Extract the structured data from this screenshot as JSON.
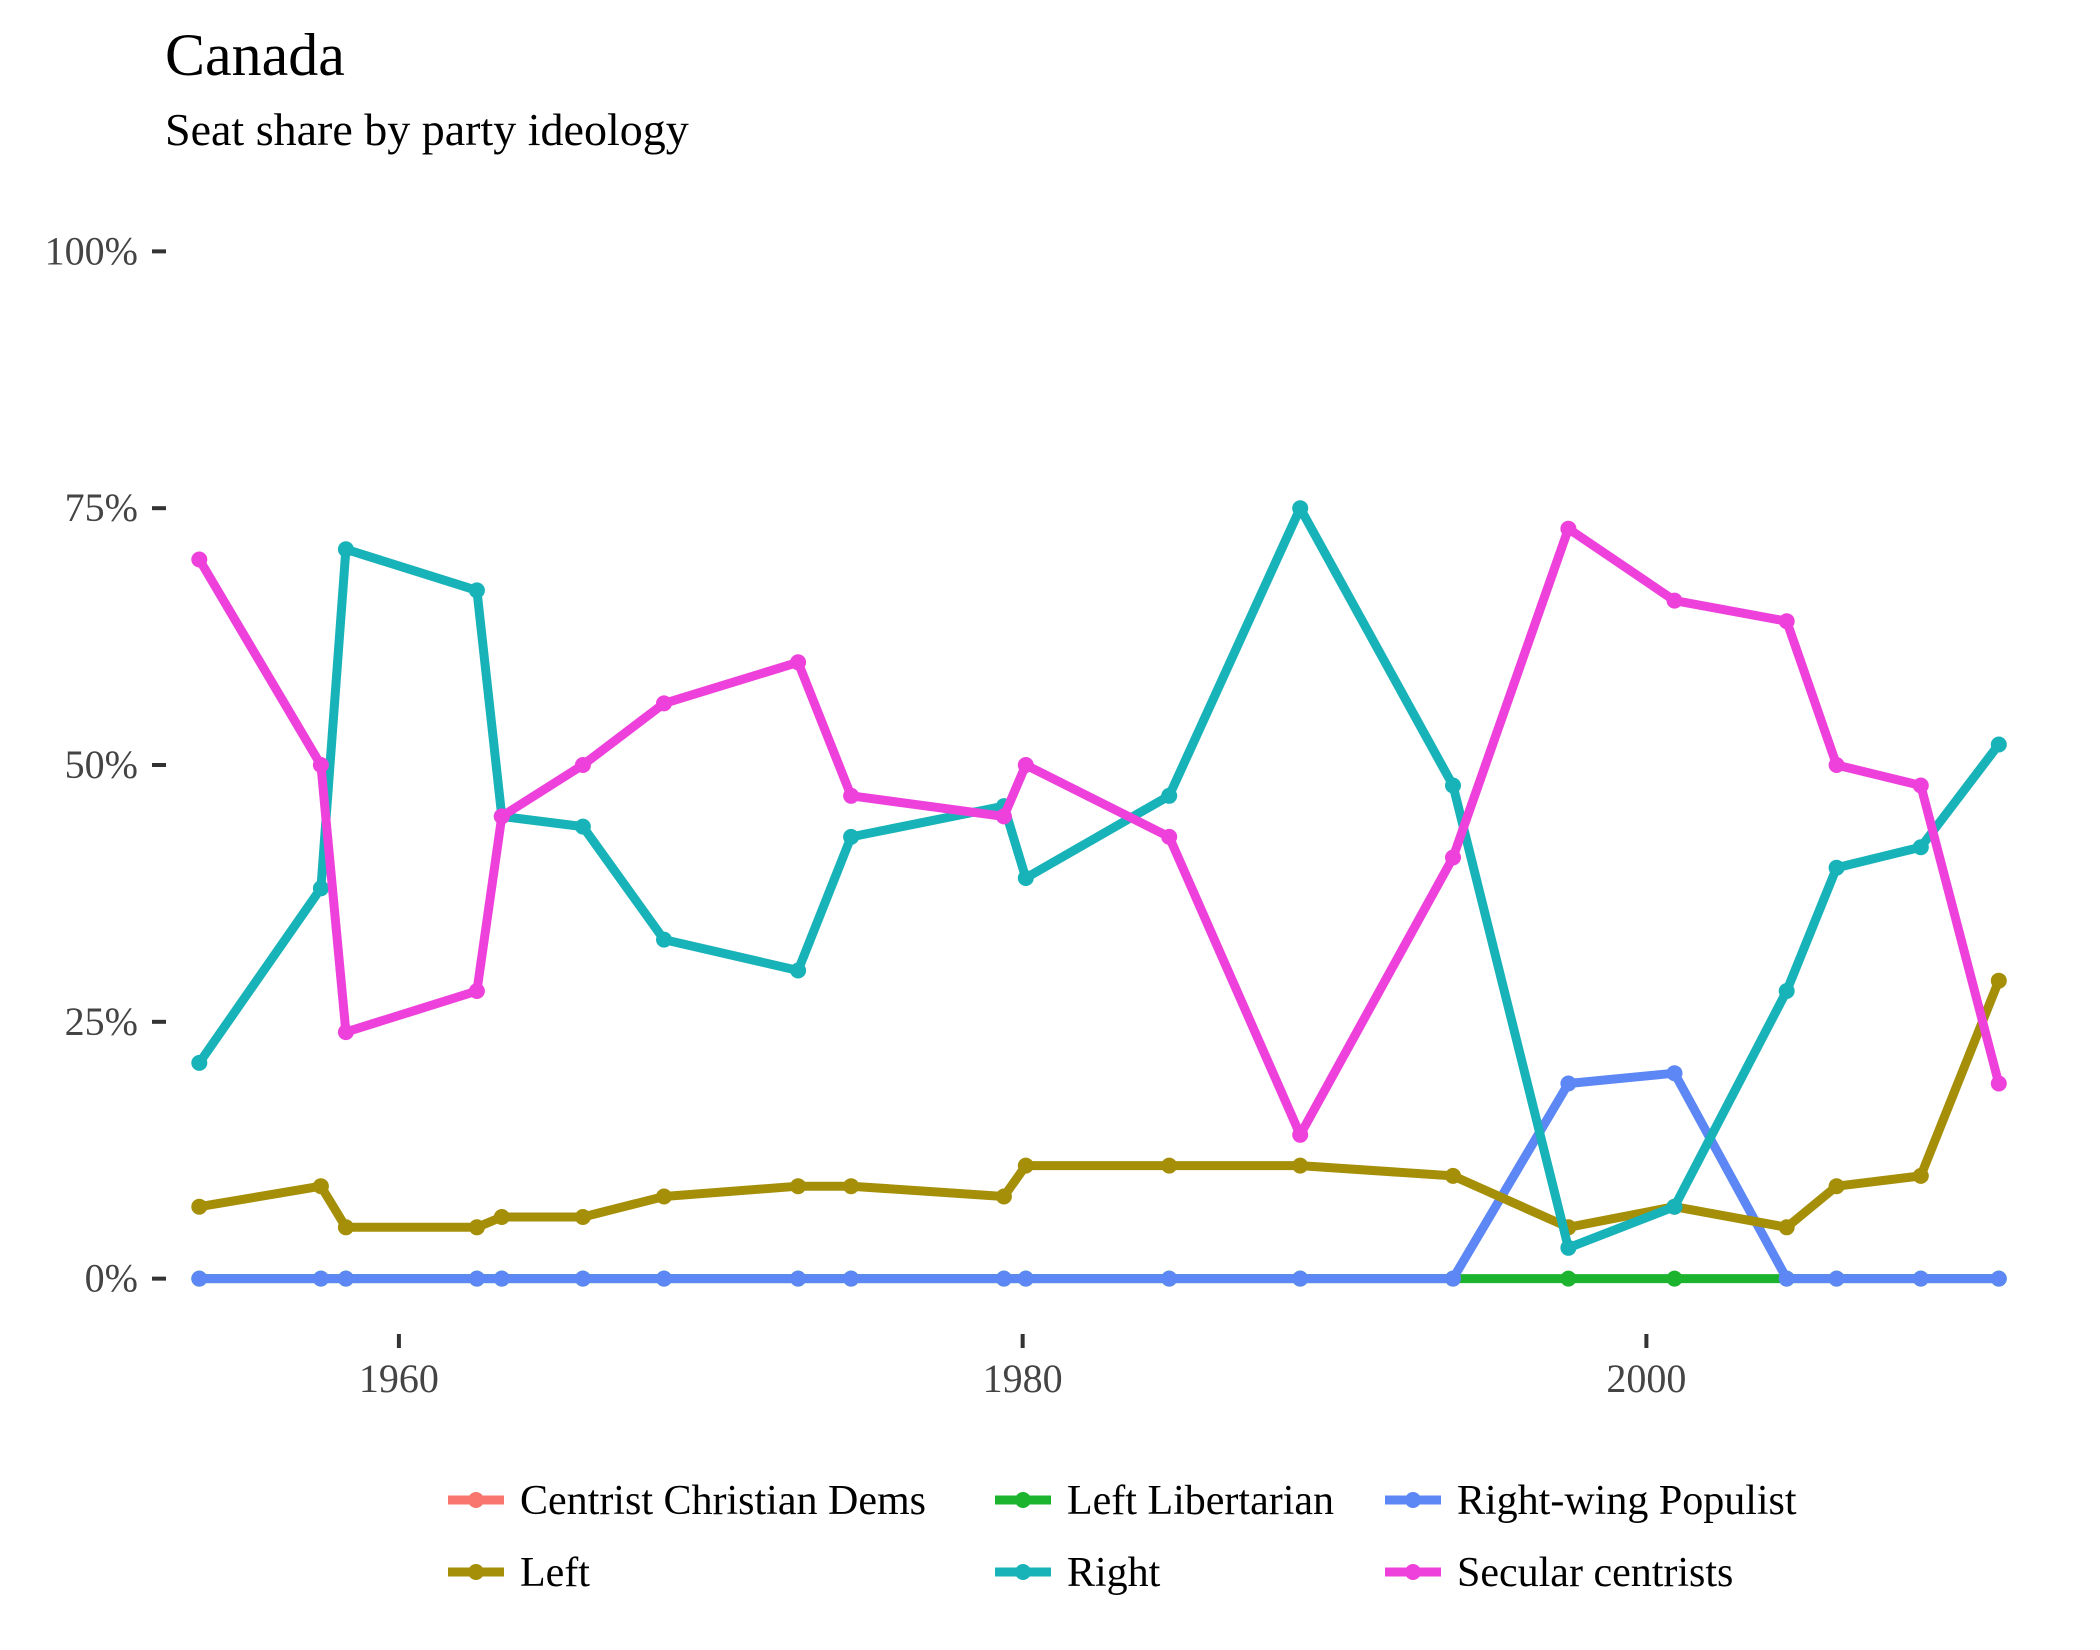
{
  "chart_data": {
    "type": "line",
    "title": "Canada",
    "subtitle": "Seat share by party ideology",
    "xlabel": "",
    "ylabel": "",
    "xlim": [
      1952.5,
      2012.3
    ],
    "ylim": [
      -0.05,
      1.05
    ],
    "x_ticks": [
      {
        "value": 1960,
        "label": "1960"
      },
      {
        "value": 1980,
        "label": "1980"
      },
      {
        "value": 2000,
        "label": "2000"
      }
    ],
    "y_ticks": [
      {
        "value": 0,
        "label": "0%"
      },
      {
        "value": 0.25,
        "label": "25%"
      },
      {
        "value": 0.5,
        "label": "50%"
      },
      {
        "value": 0.75,
        "label": "75%"
      },
      {
        "value": 1.0,
        "label": "100%"
      }
    ],
    "grid": false,
    "legend_position": "bottom",
    "x": [
      1953.6,
      1957.5,
      1958.3,
      1962.5,
      1963.3,
      1965.9,
      1968.5,
      1972.8,
      1974.5,
      1979.4,
      1980.1,
      1984.7,
      1988.9,
      1993.8,
      1997.5,
      2000.9,
      2004.5,
      2006.1,
      2008.8,
      2011.3
    ],
    "series": [
      {
        "name": "Centrist Christian Dems",
        "color": "#F8766D",
        "values": [
          null,
          null,
          null,
          null,
          null,
          null,
          null,
          null,
          null,
          null,
          null,
          null,
          null,
          null,
          null,
          null,
          null,
          null,
          null,
          null
        ]
      },
      {
        "name": "Left Libertarian",
        "color": "#1CB42F",
        "values": [
          0,
          0,
          0,
          0,
          0,
          0,
          0,
          0,
          0,
          0,
          0,
          0,
          0,
          0,
          0,
          0,
          0,
          0,
          0,
          0
        ]
      },
      {
        "name": "Right-wing Populist",
        "color": "#5C87F5",
        "values": [
          0,
          0,
          0,
          0,
          0,
          0,
          0,
          0,
          0,
          0,
          0,
          0,
          0,
          0,
          0.19,
          0.2,
          0,
          0,
          0,
          0
        ]
      },
      {
        "name": "Left",
        "color": "#A58F08",
        "values": [
          0.07,
          0.09,
          0.05,
          0.05,
          0.06,
          0.06,
          0.08,
          0.09,
          0.09,
          0.08,
          0.11,
          0.11,
          0.11,
          0.1,
          0.05,
          0.07,
          0.05,
          0.09,
          0.1,
          0.29
        ]
      },
      {
        "name": "Right",
        "color": "#17B3B8",
        "values": [
          0.21,
          0.38,
          0.71,
          0.67,
          0.45,
          0.44,
          0.33,
          0.3,
          0.43,
          0.46,
          0.39,
          0.47,
          0.75,
          0.48,
          0.03,
          0.07,
          0.28,
          0.4,
          0.42,
          0.52
        ]
      },
      {
        "name": "Secular centrists",
        "color": "#EE41DC",
        "values": [
          0.7,
          0.5,
          0.24,
          0.28,
          0.45,
          0.5,
          0.56,
          0.6,
          0.47,
          0.45,
          0.5,
          0.43,
          0.14,
          0.41,
          0.73,
          0.66,
          0.64,
          0.5,
          0.48,
          0.19
        ]
      }
    ],
    "legend_order": [
      "Centrist Christian Dems",
      "Left Libertarian",
      "Right-wing Populist",
      "Left",
      "Right",
      "Secular centrists"
    ]
  }
}
